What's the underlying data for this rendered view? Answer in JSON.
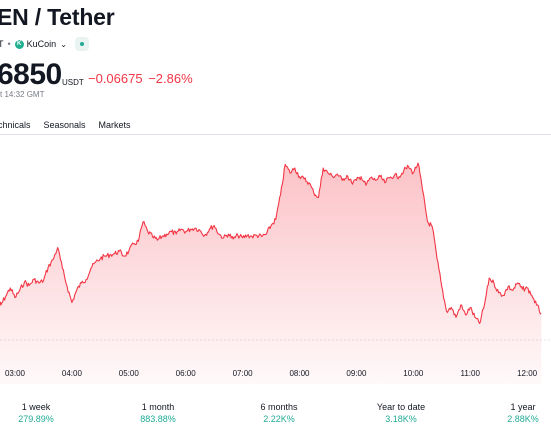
{
  "header": {
    "title": "EN / Tether",
    "symbol_fragment": "T",
    "exchange": "KuCoin",
    "exchange_icon": "kucoin-logo-icon"
  },
  "quote": {
    "price": "6850",
    "currency": "USDT",
    "change": "−0.06675",
    "change_percent": "−2.86%",
    "timestamp": "t 14:32 GMT"
  },
  "tabs": [
    "chnicals",
    "Seasonals",
    "Markets"
  ],
  "colors": {
    "line": "#f23645",
    "fill_top": "#f7b4b9",
    "positive": "#22ab94"
  },
  "chart_data": {
    "type": "area",
    "x_tick_labels": [
      "03:00",
      "04:00",
      "05:00",
      "06:00",
      "07:00",
      "08:00",
      "09:00",
      "10:00",
      "11:00",
      "12:00"
    ],
    "grid": false,
    "legend": "none",
    "series_points": [
      [
        "02:40",
        0.42
      ],
      [
        "02:45",
        0.4
      ],
      [
        "02:50",
        0.47
      ],
      [
        "02:55",
        0.54
      ],
      [
        "03:00",
        0.46
      ],
      [
        "03:05",
        0.52
      ],
      [
        "03:10",
        0.59
      ],
      [
        "03:15",
        0.56
      ],
      [
        "03:20",
        0.61
      ],
      [
        "03:25",
        0.58
      ],
      [
        "03:30",
        0.6
      ],
      [
        "03:35",
        0.71
      ],
      [
        "03:40",
        0.77
      ],
      [
        "03:45",
        0.87
      ],
      [
        "03:50",
        0.7
      ],
      [
        "03:55",
        0.55
      ],
      [
        "04:00",
        0.42
      ],
      [
        "04:05",
        0.52
      ],
      [
        "04:10",
        0.58
      ],
      [
        "04:15",
        0.61
      ],
      [
        "04:20",
        0.7
      ],
      [
        "04:25",
        0.75
      ],
      [
        "04:30",
        0.78
      ],
      [
        "04:35",
        0.8
      ],
      [
        "04:40",
        0.81
      ],
      [
        "04:45",
        0.82
      ],
      [
        "04:50",
        0.84
      ],
      [
        "04:55",
        0.8
      ],
      [
        "05:00",
        0.84
      ],
      [
        "05:05",
        0.9
      ],
      [
        "05:10",
        0.92
      ],
      [
        "05:15",
        1.08
      ],
      [
        "05:20",
        1.0
      ],
      [
        "05:25",
        0.96
      ],
      [
        "05:30",
        0.93
      ],
      [
        "05:35",
        0.96
      ],
      [
        "05:40",
        0.98
      ],
      [
        "05:45",
        1.0
      ],
      [
        "05:50",
        0.98
      ],
      [
        "05:55",
        1.02
      ],
      [
        "06:00",
        1.0
      ],
      [
        "06:05",
        1.02
      ],
      [
        "06:10",
        1.03
      ],
      [
        "06:15",
        1.01
      ],
      [
        "06:20",
        0.97
      ],
      [
        "06:25",
        1.02
      ],
      [
        "06:30",
        1.05
      ],
      [
        "06:35",
        0.98
      ],
      [
        "06:40",
        0.95
      ],
      [
        "06:45",
        0.98
      ],
      [
        "06:50",
        0.94
      ],
      [
        "06:55",
        0.97
      ],
      [
        "07:00",
        0.95
      ],
      [
        "07:05",
        0.97
      ],
      [
        "07:10",
        0.96
      ],
      [
        "07:15",
        0.97
      ],
      [
        "07:20",
        0.96
      ],
      [
        "07:25",
        0.98
      ],
      [
        "07:30",
        1.05
      ],
      [
        "07:35",
        1.1
      ],
      [
        "07:40",
        1.3
      ],
      [
        "07:45",
        1.55
      ],
      [
        "07:50",
        1.48
      ],
      [
        "07:55",
        1.52
      ],
      [
        "08:00",
        1.45
      ],
      [
        "08:05",
        1.43
      ],
      [
        "08:10",
        1.4
      ],
      [
        "08:15",
        1.32
      ],
      [
        "08:20",
        1.28
      ],
      [
        "08:25",
        1.52
      ],
      [
        "08:30",
        1.48
      ],
      [
        "08:35",
        1.45
      ],
      [
        "08:40",
        1.47
      ],
      [
        "08:45",
        1.42
      ],
      [
        "08:50",
        1.46
      ],
      [
        "08:55",
        1.4
      ],
      [
        "09:00",
        1.42
      ],
      [
        "09:05",
        1.45
      ],
      [
        "09:10",
        1.38
      ],
      [
        "09:15",
        1.44
      ],
      [
        "09:20",
        1.42
      ],
      [
        "09:25",
        1.45
      ],
      [
        "09:30",
        1.4
      ],
      [
        "09:35",
        1.44
      ],
      [
        "09:40",
        1.46
      ],
      [
        "09:45",
        1.45
      ],
      [
        "09:50",
        1.5
      ],
      [
        "09:55",
        1.53
      ],
      [
        "10:00",
        1.48
      ],
      [
        "10:05",
        1.56
      ],
      [
        "10:10",
        1.33
      ],
      [
        "10:15",
        1.08
      ],
      [
        "10:20",
        1.04
      ],
      [
        "10:25",
        0.78
      ],
      [
        "10:30",
        0.55
      ],
      [
        "10:35",
        0.35
      ],
      [
        "10:40",
        0.38
      ],
      [
        "10:45",
        0.3
      ],
      [
        "10:50",
        0.4
      ],
      [
        "10:55",
        0.32
      ],
      [
        "11:00",
        0.38
      ],
      [
        "11:05",
        0.3
      ],
      [
        "11:10",
        0.25
      ],
      [
        "11:15",
        0.4
      ],
      [
        "11:20",
        0.62
      ],
      [
        "11:25",
        0.58
      ],
      [
        "11:30",
        0.5
      ],
      [
        "11:35",
        0.48
      ],
      [
        "11:40",
        0.55
      ],
      [
        "11:45",
        0.52
      ],
      [
        "11:50",
        0.58
      ],
      [
        "11:55",
        0.53
      ],
      [
        "12:00",
        0.54
      ],
      [
        "12:05",
        0.48
      ],
      [
        "12:10",
        0.4
      ],
      [
        "12:15",
        0.33
      ]
    ]
  },
  "performance": [
    {
      "label": "1 week",
      "value": "279.89%"
    },
    {
      "label": "1 month",
      "value": "883.88%"
    },
    {
      "label": "6 months",
      "value": "2.22K%"
    },
    {
      "label": "Year to date",
      "value": "3.18K%"
    },
    {
      "label": "1 year",
      "value": "2.88K%"
    }
  ]
}
